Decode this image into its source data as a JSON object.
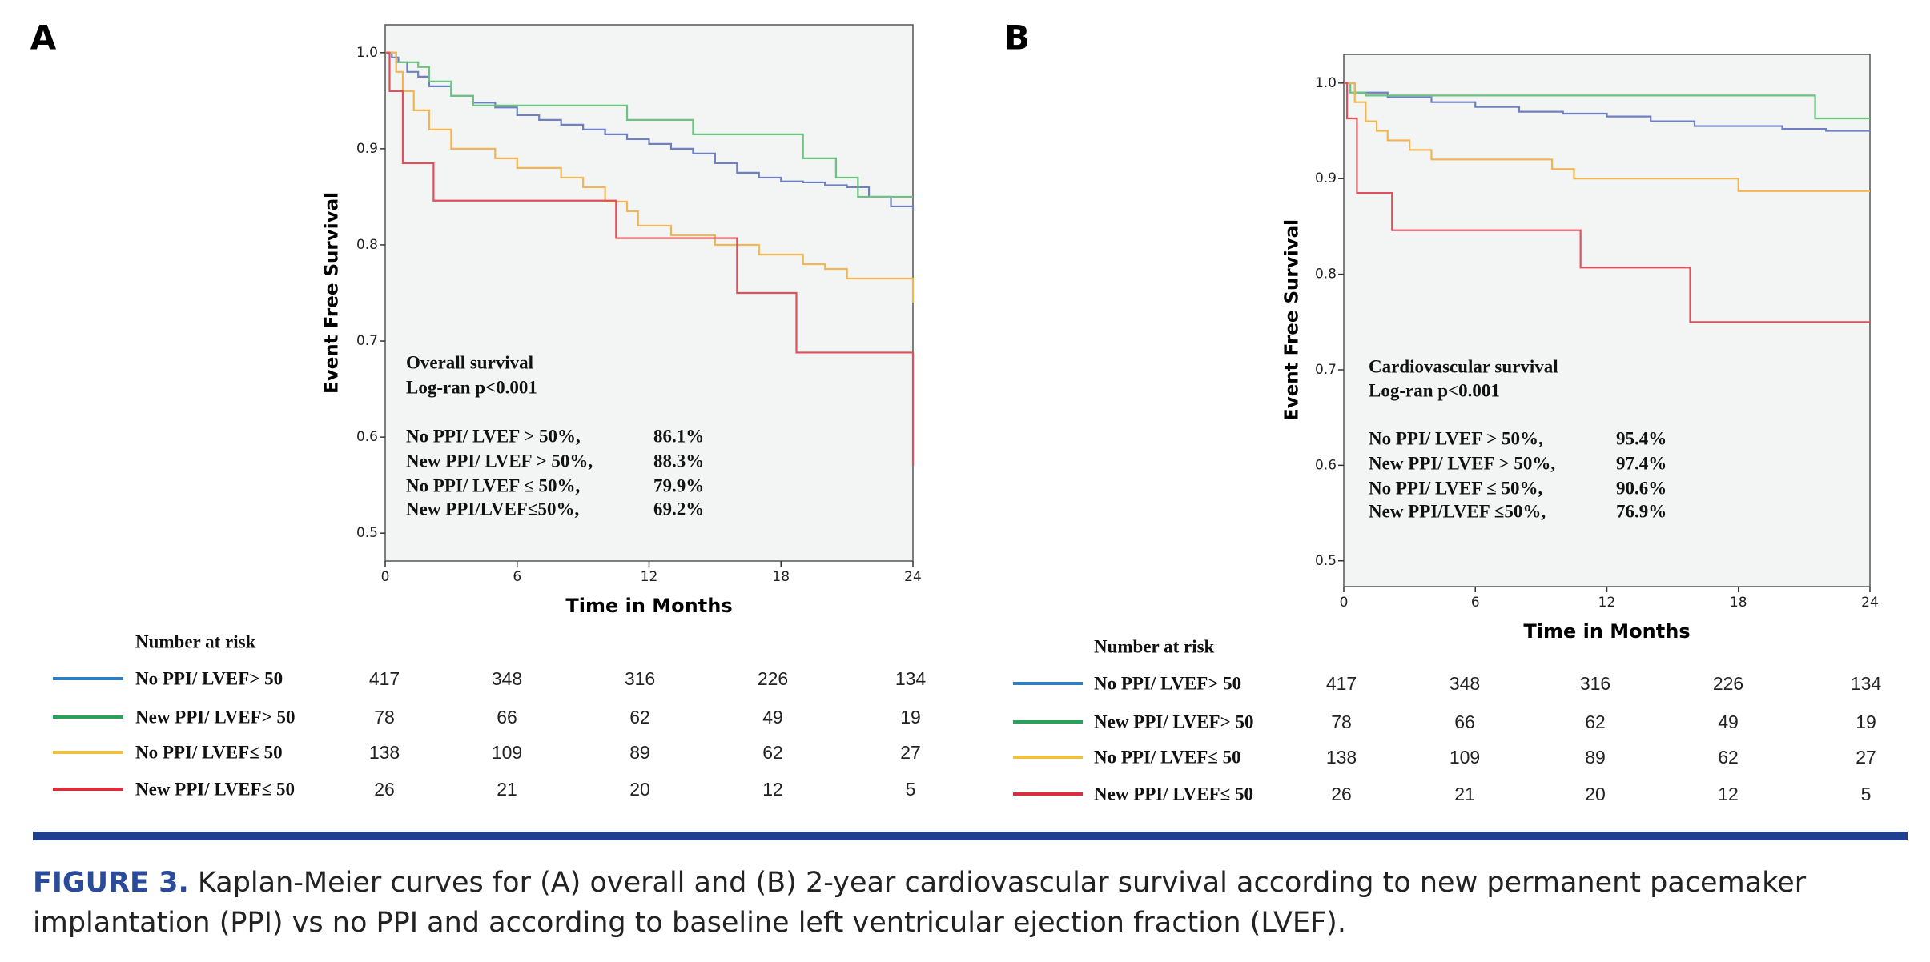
{
  "chart_data": [
    {
      "type": "step",
      "panel": "A",
      "y_label": "Event Free Survival",
      "x_label": "Time in Months",
      "xlim": [
        0,
        24
      ],
      "xticks": [
        0,
        6,
        12,
        18,
        24
      ],
      "ylim": [
        0.471,
        1.029
      ],
      "yticks": [
        {
          "value": 1,
          "label": "1.0"
        },
        0.9,
        0.8,
        0.7,
        0.6,
        0.5
      ],
      "annotation": [
        "Overall  survival",
        "Log-ran p<0.001"
      ],
      "survival_rates": [
        [
          "No PPI/ LVEF > 50%,",
          "86.1%"
        ],
        [
          "New PPI/ LVEF > 50%,",
          "88.3%"
        ],
        [
          "No PPI/ LVEF ≤ 50%,",
          "79.9%"
        ],
        [
          "New PPI/LVEF≤50%,",
          "69.2%"
        ]
      ],
      "risk_title": "Number at risk",
      "series": [
        {
          "name": "No PPI/ LVEF> 50",
          "color": "#6f80c2",
          "legend_color": "#2e7fc1",
          "x": [
            0,
            0.3,
            0.6,
            1,
            1.5,
            2,
            3,
            4,
            5,
            6,
            7,
            8,
            9,
            10,
            11,
            12,
            13,
            14,
            15,
            16,
            17,
            18,
            19,
            20,
            21,
            22,
            23,
            24
          ],
          "values": [
            1,
            0.995,
            0.99,
            0.98,
            0.975,
            0.965,
            0.955,
            0.948,
            0.943,
            0.935,
            0.93,
            0.925,
            0.92,
            0.915,
            0.91,
            0.905,
            0.9,
            0.895,
            0.885,
            0.875,
            0.87,
            0.866,
            0.865,
            0.862,
            0.86,
            0.85,
            0.84,
            0.835
          ],
          "at_risk": [
            417,
            348,
            316,
            226,
            134
          ]
        },
        {
          "name": "New PPI/ LVEF> 50",
          "color": "#6cc27f",
          "legend_color": "#2aa05a",
          "x": [
            0,
            0.5,
            1.5,
            2,
            3,
            4,
            11,
            14,
            19,
            20.5,
            21.5,
            24
          ],
          "values": [
            1,
            0.99,
            0.985,
            0.97,
            0.955,
            0.945,
            0.93,
            0.915,
            0.89,
            0.87,
            0.85,
            0.85
          ],
          "at_risk": [
            78,
            66,
            62,
            49,
            19
          ]
        },
        {
          "name": "No PPI/ LVEF≤ 50",
          "color": "#f3b452",
          "legend_color": "#f0c040",
          "x": [
            0,
            0.5,
            0.8,
            1.3,
            2,
            3,
            5,
            6,
            8,
            9,
            10,
            11,
            11.5,
            13,
            15,
            17,
            19,
            20,
            21,
            24
          ],
          "values": [
            1,
            0.98,
            0.96,
            0.94,
            0.92,
            0.9,
            0.89,
            0.88,
            0.87,
            0.86,
            0.845,
            0.835,
            0.82,
            0.81,
            0.8,
            0.79,
            0.78,
            0.775,
            0.765,
            0.74
          ],
          "at_risk": [
            138,
            109,
            89,
            62,
            27
          ]
        },
        {
          "name": "New PPI/ LVEF≤ 50",
          "color": "#e0505c",
          "legend_color": "#d8303a",
          "x": [
            0,
            0.2,
            0.8,
            2.2,
            10.5,
            16,
            18.7,
            24
          ],
          "values": [
            1,
            0.96,
            0.885,
            0.846,
            0.807,
            0.75,
            0.688,
            0.57
          ],
          "at_risk": [
            26,
            21,
            20,
            12,
            5
          ]
        }
      ]
    },
    {
      "type": "step",
      "panel": "B",
      "y_label": "Event Free Survival",
      "x_label": "Time in Months",
      "xlim": [
        0,
        24
      ],
      "xticks": [
        0,
        6,
        12,
        18,
        24
      ],
      "ylim": [
        0.473,
        1.03
      ],
      "yticks": [
        {
          "value": 1,
          "label": "1.0"
        },
        0.9,
        0.8,
        0.7,
        0.6,
        0.5
      ],
      "annotation": [
        "Cardiovascular survival",
        "Log-ran p<0.001"
      ],
      "survival_rates": [
        [
          "No PPI/ LVEF > 50%,",
          "95.4%"
        ],
        [
          "New PPI/ LVEF > 50%,",
          "97.4%"
        ],
        [
          "No PPI/ LVEF ≤ 50%,",
          "90.6%"
        ],
        [
          "New PPI/LVEF ≤50%,",
          "76.9%"
        ]
      ],
      "risk_title": "Number at risk",
      "series": [
        {
          "name": "No PPI/ LVEF> 50",
          "color": "#6f80c2",
          "legend_color": "#2e7fc1",
          "x": [
            0,
            0.5,
            2,
            4,
            6,
            8,
            10,
            12,
            14,
            16,
            18,
            20,
            22,
            24
          ],
          "values": [
            1,
            0.99,
            0.985,
            0.98,
            0.975,
            0.97,
            0.968,
            0.965,
            0.96,
            0.955,
            0.955,
            0.952,
            0.95,
            0.95
          ],
          "at_risk": [
            417,
            348,
            316,
            226,
            134
          ]
        },
        {
          "name": "New PPI/ LVEF> 50",
          "color": "#6cc27f",
          "legend_color": "#2aa05a",
          "x": [
            0,
            0.3,
            1,
            21.5,
            24
          ],
          "values": [
            1,
            0.99,
            0.987,
            0.963,
            0.963
          ],
          "at_risk": [
            78,
            66,
            62,
            49,
            19
          ]
        },
        {
          "name": "No PPI/ LVEF≤ 50",
          "color": "#f3b452",
          "legend_color": "#f0c040",
          "x": [
            0,
            0.5,
            1,
            1.5,
            2,
            3,
            4,
            9.5,
            10.5,
            18,
            24
          ],
          "values": [
            1,
            0.98,
            0.96,
            0.95,
            0.94,
            0.93,
            0.92,
            0.91,
            0.9,
            0.887,
            0.887
          ],
          "at_risk": [
            138,
            109,
            89,
            62,
            27
          ]
        },
        {
          "name": "New PPI/ LVEF≤ 50",
          "color": "#e0505c",
          "legend_color": "#d8303a",
          "x": [
            0,
            0.15,
            0.6,
            2.2,
            10.8,
            15.8,
            24
          ],
          "values": [
            1,
            0.963,
            0.885,
            0.846,
            0.807,
            0.75,
            0.75
          ],
          "at_risk": [
            26,
            21,
            20,
            12,
            5
          ]
        }
      ]
    }
  ],
  "caption": {
    "label": "FIGURE 3.",
    "text": "Kaplan-Meier curves for (A) overall and (B) 2-year cardiovascular survival according to new permanent pacemaker implantation (PPI) vs no PPI and according to baseline left ventricular ejection fraction (LVEF)."
  }
}
